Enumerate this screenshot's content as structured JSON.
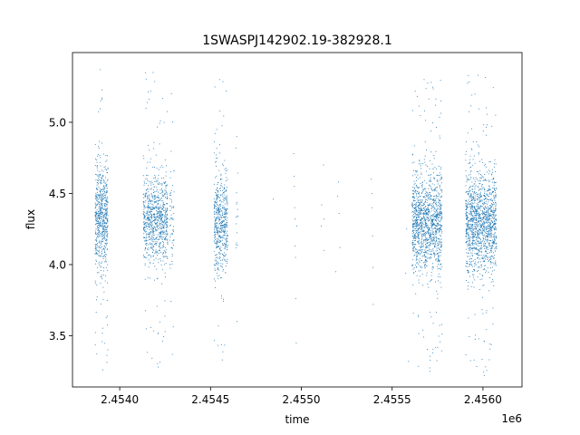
{
  "chart_data": {
    "type": "scatter",
    "title": "1SWASPJ142902.19-382928.1",
    "xlabel": "time",
    "ylabel": "flux",
    "x_offset_label": "1e6",
    "xlim": [
      2453740,
      2456215
    ],
    "ylim": [
      3.14,
      5.49
    ],
    "x_ticks": [
      {
        "value": 2454000,
        "label": "2.4540"
      },
      {
        "value": 2454500,
        "label": "2.4545"
      },
      {
        "value": 2455000,
        "label": "2.4550"
      },
      {
        "value": 2455500,
        "label": "2.4555"
      },
      {
        "value": 2456000,
        "label": "2.4560"
      }
    ],
    "y_ticks": [
      {
        "value": 3.5,
        "label": "3.5"
      },
      {
        "value": 4.0,
        "label": "4.0"
      },
      {
        "value": 4.5,
        "label": "4.5"
      },
      {
        "value": 5.0,
        "label": "5.0"
      }
    ],
    "grid": false,
    "marker_color": "#1f77b4",
    "series": [
      {
        "clusters": [
          {
            "x_start": 2453865,
            "x_end": 2453935,
            "y_center": 4.33,
            "y_spread": 0.18,
            "y_min": 3.26,
            "y_max": 5.37,
            "count": 650
          },
          {
            "x_start": 2454130,
            "x_end": 2454265,
            "y_center": 4.31,
            "y_spread": 0.15,
            "y_min": 3.28,
            "y_max": 5.35,
            "count": 850
          },
          {
            "x_start": 2454275,
            "x_end": 2454300,
            "y_center": 4.3,
            "y_spread": 0.15,
            "y_min": 3.37,
            "y_max": 5.2,
            "count": 60
          },
          {
            "x_start": 2454520,
            "x_end": 2454595,
            "y_center": 4.31,
            "y_spread": 0.17,
            "y_min": 3.33,
            "y_max": 5.3,
            "count": 550
          },
          {
            "x_start": 2454640,
            "x_end": 2454650,
            "y_center": 4.4,
            "y_spread": 0.22,
            "y_min": 3.6,
            "y_max": 4.9,
            "count": 15
          },
          {
            "x_start": 2455610,
            "x_end": 2455775,
            "y_center": 4.29,
            "y_spread": 0.17,
            "y_min": 3.25,
            "y_max": 5.3,
            "count": 1300
          },
          {
            "x_start": 2455905,
            "x_end": 2456075,
            "y_center": 4.3,
            "y_spread": 0.17,
            "y_min": 3.22,
            "y_max": 5.33,
            "count": 1400
          }
        ],
        "sparse_points": [
          [
            2454845,
            4.46
          ],
          [
            2454958,
            4.78
          ],
          [
            2454960,
            4.62
          ],
          [
            2454962,
            4.55
          ],
          [
            2454963,
            4.4
          ],
          [
            2454965,
            4.32
          ],
          [
            2454966,
            4.13
          ],
          [
            2454968,
            4.05
          ],
          [
            2454969,
            3.76
          ],
          [
            2454972,
            3.45
          ],
          [
            2454975,
            4.27
          ],
          [
            2455110,
            4.27
          ],
          [
            2455112,
            4.42
          ],
          [
            2455122,
            4.7
          ],
          [
            2455125,
            4.32
          ],
          [
            2455126,
            4.1
          ],
          [
            2455190,
            3.95
          ],
          [
            2455200,
            4.48
          ],
          [
            2455205,
            4.58
          ],
          [
            2455208,
            4.36
          ],
          [
            2455212,
            4.12
          ],
          [
            2455385,
            4.6
          ],
          [
            2455388,
            4.5
          ],
          [
            2455390,
            4.4
          ],
          [
            2455392,
            4.2
          ],
          [
            2455394,
            3.98
          ],
          [
            2455396,
            3.72
          ],
          [
            2455575,
            3.94
          ],
          [
            2455580,
            4.25
          ],
          [
            2455590,
            3.32
          ]
        ]
      }
    ]
  }
}
